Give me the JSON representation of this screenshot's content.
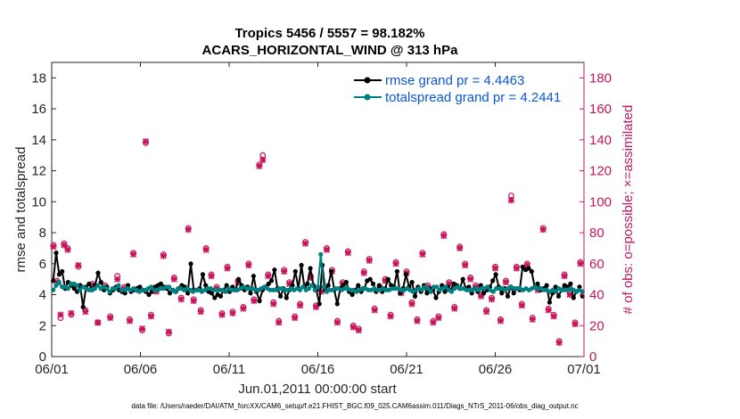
{
  "chart_data": {
    "type": "line",
    "title": "Tropics 5456 / 5557 = 98.182%",
    "subtitle": "ACARS_HORIZONTAL_WIND @ 313 hPa",
    "xlabel": "Jun.01,2011 00:00:00 start",
    "ylabel": "rmse and totalspread",
    "y2label": "# of obs: o=possible; ×=assimilated",
    "xlim": [
      0,
      30
    ],
    "ylim": [
      0,
      19
    ],
    "y2lim": [
      0,
      190
    ],
    "x_ticks": [
      0,
      5,
      10,
      15,
      20,
      25,
      30
    ],
    "x_tick_labels": [
      "06/01",
      "06/06",
      "06/11",
      "06/16",
      "06/21",
      "06/26",
      "07/01"
    ],
    "y_ticks": [
      0,
      2,
      4,
      6,
      8,
      10,
      12,
      14,
      16,
      18
    ],
    "y2_ticks": [
      0,
      20,
      40,
      60,
      80,
      100,
      120,
      140,
      160,
      180
    ],
    "footnote": "data file: /Users/raeder/DAI/ATM_forcXX/CAM6_setup/f.e21.FHIST_BGC.f09_025.CAM6assim.011/Diags_NTrS_2011-06/obs_diag_output.nc",
    "series": [
      {
        "name": "rmse grand pr = 4.4463",
        "color": "#000000",
        "marker": "circle",
        "values": [
          4.9,
          6.7,
          5.3,
          5.5,
          4.4,
          4.8,
          4.6,
          4.4,
          4.2,
          4.6,
          3.2,
          4.5,
          4.7,
          4.3,
          4.6,
          5.4,
          4.8,
          4.3,
          4.5,
          4.1,
          4.3,
          4.5,
          4.3,
          4.2,
          4.1,
          4.6,
          4.2,
          4.3,
          4.4,
          4.5,
          4.3,
          4.2,
          4.0,
          4.2,
          4.5,
          4.6,
          4.7,
          4.5,
          4.4,
          4.1,
          4.3,
          4.2,
          4.4,
          4.6,
          4.5,
          4.1,
          6.0,
          4.3,
          4.3,
          4.4,
          5.3,
          4.6,
          4.2,
          4.1,
          3.8,
          4.0,
          3.9,
          4.3,
          4.6,
          4.2,
          4.5,
          4.3,
          5.0,
          4.6,
          4.3,
          4.5,
          4.1,
          5.2,
          4.2,
          3.6,
          4.3,
          4.5,
          4.7,
          4.9,
          5.6,
          4.4,
          3.9,
          4.4,
          3.8,
          4.3,
          4.6,
          5.5,
          4.4,
          5.9,
          4.5,
          4.7,
          5.7,
          4.6,
          4.3,
          3.4,
          5.9,
          4.3,
          4.6,
          5.5,
          4.3,
          3.4,
          4.4,
          4.6,
          4.8,
          4.2,
          4.0,
          4.3,
          4.6,
          4.2,
          4.4,
          4.9,
          5.0,
          4.7,
          4.2,
          4.6,
          4.2,
          4.4,
          5.0,
          4.6,
          4.5,
          5.5,
          4.1,
          4.4,
          5.3,
          4.5,
          4.8,
          3.9,
          4.5,
          4.2,
          4.6,
          4.1,
          4.4,
          4.3,
          3.8,
          4.2,
          4.6,
          4.2,
          4.5,
          4.3,
          4.7,
          4.6,
          4.4,
          5.0,
          4.4,
          4.5,
          4.1,
          4.4,
          4.2,
          4.6,
          4.1,
          4.3,
          4.5,
          4.9,
          5.3,
          4.5,
          4.1,
          4.4,
          3.9,
          4.5,
          4.1,
          4.4,
          4.3,
          5.8,
          5.6,
          5.7,
          5.5,
          4.5,
          4.7,
          4.3,
          4.4,
          4.6,
          3.5,
          4.1,
          4.5,
          3.9,
          4.3,
          4.6,
          4.5,
          4.7,
          3.8,
          4.2,
          4.5,
          3.9
        ],
        "line_width": 2
      },
      {
        "name": "totalspread grand pr = 4.2441",
        "color": "#008080",
        "marker": "circle",
        "values": [
          4.3,
          4.6,
          4.8,
          4.5,
          4.5,
          4.4,
          4.7,
          4.7,
          4.6,
          4.3,
          4.5,
          4.4,
          4.3,
          4.3,
          4.4,
          4.6,
          4.4,
          4.5,
          4.4,
          4.2,
          4.4,
          4.4,
          4.6,
          4.3,
          4.3,
          4.4,
          4.3,
          4.4,
          4.3,
          4.2,
          4.3,
          4.3,
          4.4,
          4.5,
          4.3,
          4.3,
          4.4,
          4.4,
          4.5,
          4.5,
          4.3,
          4.2,
          4.4,
          4.4,
          4.3,
          4.4,
          4.3,
          4.2,
          4.3,
          4.3,
          4.2,
          4.3,
          4.4,
          4.4,
          4.3,
          4.3,
          4.3,
          4.3,
          4.2,
          4.4,
          4.3,
          4.3,
          4.3,
          4.4,
          4.5,
          4.4,
          4.4,
          4.4,
          4.3,
          4.3,
          4.4,
          4.5,
          4.4,
          4.3,
          4.3,
          4.3,
          4.4,
          4.4,
          4.3,
          4.3,
          4.4,
          4.3,
          4.4,
          4.3,
          4.5,
          4.3,
          4.4,
          4.6,
          4.3,
          4.5,
          6.6,
          4.5,
          4.2,
          4.3,
          4.3,
          4.4,
          4.4,
          4.3,
          4.4,
          4.4,
          4.3,
          4.3,
          4.2,
          4.3,
          4.4,
          4.4,
          4.3,
          4.3,
          4.4,
          4.3,
          4.3,
          4.4,
          4.3,
          4.3,
          4.4,
          4.4,
          4.4,
          4.3,
          4.3,
          4.4,
          4.3,
          4.2,
          4.3,
          4.4,
          4.3,
          4.5,
          4.4,
          4.2,
          4.5,
          4.5,
          4.3,
          4.4,
          4.5,
          4.3,
          4.2,
          4.4,
          4.5,
          4.4,
          4.4,
          4.3,
          4.3,
          4.3,
          4.4,
          4.3,
          4.4,
          4.4,
          4.5,
          4.3,
          4.2,
          4.4,
          4.4,
          4.4,
          4.3,
          4.4,
          4.5,
          4.4,
          4.4,
          4.4,
          4.3,
          4.4,
          4.3,
          4.4,
          4.5,
          4.4,
          4.4,
          4.3,
          4.3,
          4.2,
          4.3,
          4.2,
          4.4,
          4.3,
          4.3,
          4.3,
          4.4,
          4.3,
          4.2,
          4.3,
          4.2
        ],
        "line_width": 2
      }
    ],
    "obs_counts": {
      "color": "#c8145a",
      "x": [
        0.1,
        0.3,
        0.5,
        0.7,
        0.9,
        1.1,
        1.5,
        1.9,
        2.3,
        2.6,
        3.0,
        3.3,
        3.7,
        4.1,
        4.4,
        4.6,
        4.9,
        5.1,
        5.3,
        5.6,
        5.9,
        6.3,
        6.6,
        6.9,
        7.3,
        7.7,
        8.0,
        8.4,
        8.7,
        9.0,
        9.3,
        9.6,
        9.9,
        10.2,
        10.5,
        10.8,
        11.1,
        11.4,
        11.7,
        11.9,
        12.2,
        12.5,
        12.8,
        13.1,
        13.4,
        13.7,
        14.0,
        14.3,
        14.6,
        14.9,
        15.2,
        15.5,
        15.8,
        16.1,
        16.4,
        16.7,
        17.0,
        17.3,
        17.6,
        17.9,
        18.2,
        18.5,
        18.8,
        19.1,
        19.4,
        19.7,
        20.0,
        20.3,
        20.6,
        20.9,
        21.2,
        21.5,
        21.8,
        22.1,
        22.4,
        22.7,
        23.0,
        23.3,
        23.6,
        23.9,
        24.2,
        24.5,
        24.8,
        25.0,
        25.3,
        25.6,
        25.9,
        26.2,
        26.5,
        26.8,
        27.1,
        27.4,
        27.7,
        28.0,
        28.3,
        28.6,
        28.9,
        29.2,
        29.5,
        29.8
      ],
      "possible": [
        72,
        49,
        25,
        73,
        70,
        27,
        58,
        30,
        47,
        22,
        46,
        26,
        52,
        45,
        24,
        67,
        44,
        17,
        138,
        27,
        43,
        66,
        15,
        51,
        38,
        83,
        37,
        30,
        70,
        53,
        45,
        28,
        58,
        29,
        49,
        32,
        60,
        37,
        124,
        130,
        53,
        35,
        23,
        56,
        48,
        26,
        34,
        74,
        52,
        33,
        43,
        70,
        56,
        23,
        48,
        68,
        20,
        18,
        55,
        63,
        31,
        45,
        50,
        27,
        61,
        42,
        55,
        35,
        24,
        67,
        46,
        23,
        26,
        79,
        48,
        32,
        71,
        60,
        51,
        46,
        40,
        30,
        38,
        58,
        24,
        49,
        104,
        58,
        34,
        60,
        25,
        44,
        83,
        31,
        27,
        10,
        53,
        41,
        22,
        61
      ],
      "assimilated": [
        71,
        48,
        27,
        72,
        69,
        28,
        59,
        29,
        46,
        22,
        45,
        25,
        50,
        44,
        23,
        66,
        43,
        18,
        139,
        26,
        42,
        65,
        16,
        50,
        37,
        82,
        36,
        29,
        69,
        52,
        44,
        27,
        57,
        28,
        48,
        31,
        59,
        36,
        123,
        127,
        52,
        34,
        22,
        55,
        47,
        25,
        33,
        73,
        51,
        32,
        42,
        69,
        55,
        22,
        47,
        67,
        19,
        17,
        54,
        62,
        30,
        44,
        49,
        26,
        60,
        41,
        54,
        34,
        23,
        66,
        45,
        22,
        25,
        78,
        47,
        31,
        70,
        59,
        50,
        45,
        39,
        29,
        37,
        57,
        23,
        48,
        101,
        57,
        33,
        59,
        24,
        43,
        82,
        30,
        26,
        9,
        52,
        40,
        21,
        60
      ]
    }
  }
}
